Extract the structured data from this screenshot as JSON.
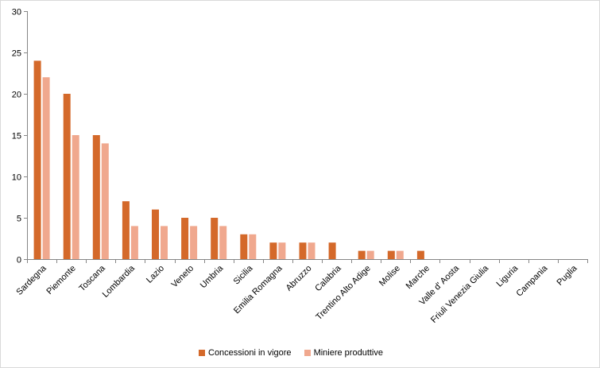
{
  "chart_data": {
    "type": "bar",
    "categories": [
      "Sardegna",
      "Piemonte",
      "Toscana",
      "Lombardia",
      "Lazio",
      "Veneto",
      "Umbria",
      "Sicilia",
      "Emilia Romagna",
      "Abruzzo",
      "Calabria",
      "Trentino Alto Adige",
      "Molise",
      "Marche",
      "Valle d' Aosta",
      "Friuli Venezia Giulia",
      "Liguria",
      "Campania",
      "Puglia"
    ],
    "series": [
      {
        "name": "Concessioni in vigore",
        "color": "#d4692a",
        "values": [
          24,
          20,
          15,
          7,
          6,
          5,
          5,
          3,
          2,
          2,
          2,
          1,
          1,
          1,
          0,
          0,
          0,
          0,
          0
        ]
      },
      {
        "name": "Miniere produttive",
        "color": "#f0a88e",
        "values": [
          22,
          15,
          14,
          4,
          4,
          4,
          4,
          3,
          2,
          2,
          0,
          1,
          1,
          0,
          0,
          0,
          0,
          0,
          0
        ]
      }
    ],
    "ylim": [
      0,
      30
    ],
    "yticks": [
      "0",
      "5",
      "10",
      "15",
      "20",
      "25",
      "30"
    ],
    "grid": false,
    "legend_position": "bottom"
  }
}
